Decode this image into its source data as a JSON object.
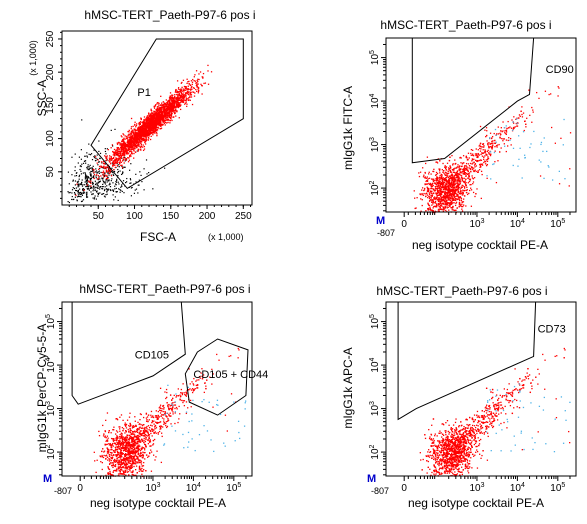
{
  "figure": {
    "colors": {
      "events": "#ff0000",
      "outliers": "#4fb3e8",
      "background_events": "#000000",
      "gate": "#000000",
      "marker": "#0000cc"
    },
    "marker_label": "M"
  },
  "chart_data": [
    {
      "type": "scatter",
      "title": "hMSC-TERT_Paeth-P97-6 pos i",
      "xlabel": "FSC-A",
      "ylabel": "SSC-A",
      "x_scale": "linear",
      "y_scale": "linear",
      "x_multiplier": "(x 1,000)",
      "y_multiplier": "(x 1,000)",
      "xlim": [
        0,
        262
      ],
      "ylim": [
        0,
        262
      ],
      "x_ticks": [
        "50",
        "100",
        "150",
        "200",
        "250"
      ],
      "y_ticks": [
        "50",
        "100",
        "150",
        "200",
        "250"
      ],
      "gates": [
        {
          "label": "P1",
          "label_at": [
            104,
            164
          ],
          "polygon": [
            [
              40,
              90
            ],
            [
              130,
              250
            ],
            [
              250,
              250
            ],
            [
              250,
              130
            ],
            [
              90,
              25
            ]
          ]
        }
      ],
      "population": {
        "center": [
          120,
          120
        ],
        "spread": [
          30,
          30
        ],
        "points": 2600
      },
      "annotations": []
    },
    {
      "type": "scatter",
      "title": "hMSC-TERT_Paeth-P97-6 pos i",
      "xlabel": "neg isotype cocktail PE-A",
      "ylabel": "mIgG1k FITC-A",
      "x_scale": "log",
      "y_scale": "log",
      "x_origin_label": "-807",
      "x_ticks": [
        "0",
        "10^3",
        "10^4",
        "10^5"
      ],
      "y_ticks": [
        "10^2",
        "10^3",
        "10^4",
        "10^5"
      ],
      "gates": [
        {
          "label": "CD90",
          "label_at": [
            4.7,
            4.65
          ],
          "polygon": [
            [
              1.4,
              2.58
            ],
            [
              2.2,
              2.68
            ],
            [
              4.0,
              4.0
            ],
            [
              4.3,
              4.15
            ],
            [
              4.4,
              5.45
            ],
            [
              1.4,
              5.45
            ]
          ]
        }
      ],
      "population": {
        "center": [
          2.2,
          2.0
        ],
        "spread": [
          0.45,
          0.3
        ],
        "points": 1600
      },
      "annotations": []
    },
    {
      "type": "scatter",
      "title": "hMSC-TERT_Paeth-P97-6 pos i",
      "xlabel": "neg isotype cocktail PE-A",
      "ylabel": "mIgG1k PerCP-Cy5-5-A",
      "x_scale": "log",
      "y_scale": "log",
      "x_origin_label": "-807",
      "x_ticks": [
        "0",
        "10^3",
        "10^4",
        "10^5"
      ],
      "y_ticks": [
        "10^2",
        "10^3",
        "10^4",
        "10^5"
      ],
      "gates": [
        {
          "label": "CD105",
          "label_at": [
            2.55,
            4.15
          ],
          "polygon": [
            [
              1.0,
              3.3
            ],
            [
              1.15,
              3.1
            ],
            [
              3.0,
              3.75
            ],
            [
              3.8,
              4.25
            ],
            [
              3.7,
              5.45
            ],
            [
              1.0,
              5.45
            ]
          ]
        },
        {
          "label": "CD105 + CD44",
          "label_at": [
            4.0,
            3.7
          ],
          "polygon": [
            [
              4.1,
              4.3
            ],
            [
              4.6,
              4.6
            ],
            [
              5.35,
              4.35
            ],
            [
              5.3,
              3.3
            ],
            [
              4.6,
              2.85
            ],
            [
              3.9,
              3.15
            ],
            [
              3.8,
              3.8
            ]
          ]
        }
      ],
      "population": {
        "center": [
          2.3,
          2.05
        ],
        "spread": [
          0.45,
          0.35
        ],
        "points": 1600
      },
      "annotations": []
    },
    {
      "type": "scatter",
      "title": "hMSC-TERT_Paeth-P97-6 pos i",
      "xlabel": "neg isotype cocktail PE-A",
      "ylabel": "mIgG1k APC-A",
      "x_scale": "log",
      "y_scale": "log",
      "x_origin_label": "-807",
      "x_ticks": [
        "0",
        "10^3",
        "10^4",
        "10^5"
      ],
      "y_ticks": [
        "10^2",
        "10^3",
        "10^4",
        "10^5"
      ],
      "gates": [
        {
          "label": "CD73",
          "label_at": [
            4.5,
            4.75
          ],
          "polygon": [
            [
              1.05,
              2.75
            ],
            [
              1.5,
              3.0
            ],
            [
              4.4,
              4.2
            ],
            [
              4.45,
              5.45
            ],
            [
              1.05,
              5.45
            ]
          ]
        }
      ],
      "population": {
        "center": [
          2.35,
          2.05
        ],
        "spread": [
          0.45,
          0.3
        ],
        "points": 1600
      },
      "annotations": []
    }
  ]
}
